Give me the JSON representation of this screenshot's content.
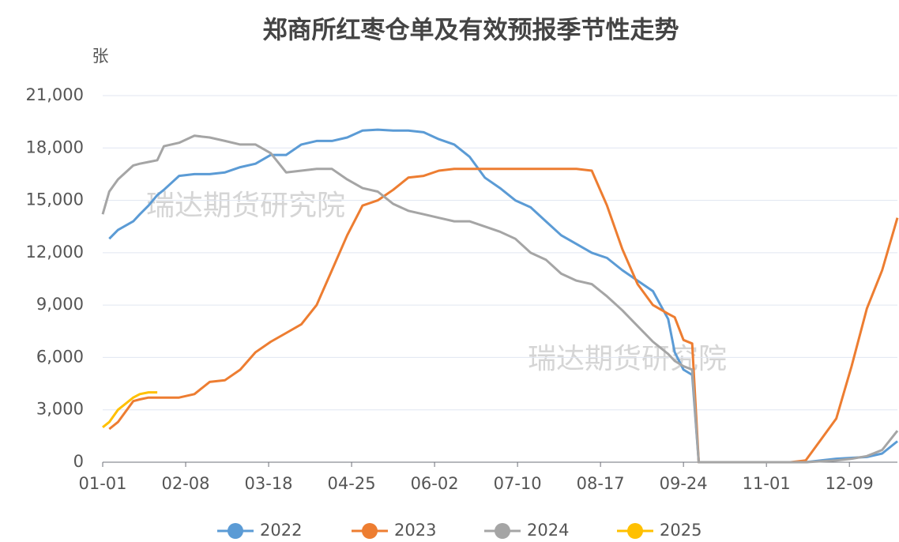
{
  "chart_data": {
    "type": "line",
    "title": "郑商所红枣仓单及有效预报季节性走势",
    "y_unit": "张",
    "watermarks": [
      "瑞达期货研究院",
      "瑞达期货研究院"
    ],
    "x": [
      "01-01",
      "01-04",
      "01-08",
      "01-15",
      "01-18",
      "01-22",
      "01-26",
      "01-29",
      "02-05",
      "02-12",
      "02-19",
      "02-26",
      "03-05",
      "03-12",
      "03-19",
      "03-26",
      "04-02",
      "04-09",
      "04-16",
      "04-23",
      "04-30",
      "05-07",
      "05-14",
      "05-21",
      "05-28",
      "06-04",
      "06-11",
      "06-18",
      "06-25",
      "07-02",
      "07-09",
      "07-16",
      "07-23",
      "07-30",
      "08-06",
      "08-13",
      "08-20",
      "08-27",
      "09-03",
      "09-10",
      "09-17",
      "09-20",
      "09-24",
      "09-28",
      "10-01",
      "10-08",
      "10-15",
      "10-22",
      "10-29",
      "11-05",
      "11-12",
      "11-19",
      "11-26",
      "12-03",
      "12-10",
      "12-17",
      "12-24",
      "12-31"
    ],
    "xlim": [
      "01-01",
      "12-31"
    ],
    "xticks": [
      "01-01",
      "02-08",
      "03-18",
      "04-25",
      "06-02",
      "07-10",
      "08-17",
      "09-24",
      "11-01",
      "12-09"
    ],
    "ylim": [
      0,
      21000
    ],
    "yticks": [
      {
        "value": 0,
        "label": "0"
      },
      {
        "value": 3000,
        "label": "3,000"
      },
      {
        "value": 6000,
        "label": "6,000"
      },
      {
        "value": 9000,
        "label": "9,000"
      },
      {
        "value": 12000,
        "label": "12,000"
      },
      {
        "value": 15000,
        "label": "15,000"
      },
      {
        "value": 18000,
        "label": "18,000"
      },
      {
        "value": 21000,
        "label": "21,000"
      }
    ],
    "grid": true,
    "legend": "bottom",
    "series": [
      {
        "name": "2022",
        "color": "#5b9bd5",
        "values": [
          null,
          12800,
          13300,
          13800,
          14200,
          14700,
          15300,
          15600,
          16400,
          16500,
          16500,
          16600,
          16900,
          17100,
          17600,
          17600,
          18200,
          18400,
          18400,
          18600,
          19000,
          19050,
          19000,
          19000,
          18900,
          18500,
          18200,
          17500,
          16300,
          15700,
          15000,
          14600,
          13800,
          13000,
          12500,
          12000,
          11700,
          11000,
          10400,
          9800,
          8200,
          6300,
          5300,
          5000,
          0,
          0,
          0,
          0,
          0,
          0,
          0,
          0,
          100,
          200,
          250,
          300,
          500,
          1200
        ]
      },
      {
        "name": "2023",
        "color": "#ed7d31",
        "values": [
          null,
          1900,
          2300,
          3500,
          3600,
          3700,
          3700,
          3700,
          3700,
          3900,
          4600,
          4700,
          5300,
          6300,
          6900,
          7400,
          7900,
          9000,
          11000,
          13000,
          14700,
          15000,
          15600,
          16300,
          16400,
          16700,
          16800,
          16800,
          16800,
          16800,
          16800,
          16800,
          16800,
          16800,
          16800,
          16700,
          14700,
          12200,
          10200,
          9000,
          8500,
          8300,
          7000,
          6800,
          0,
          0,
          0,
          0,
          0,
          0,
          0,
          100,
          1300,
          2500,
          5500,
          8800,
          11000,
          14000
        ]
      },
      {
        "name": "2024",
        "color": "#a5a5a5",
        "values": [
          14200,
          15500,
          16200,
          17000,
          17100,
          17200,
          17300,
          18100,
          18300,
          18700,
          18600,
          18400,
          18200,
          18200,
          17700,
          16600,
          16700,
          16800,
          16800,
          16200,
          15700,
          15500,
          14800,
          14400,
          14200,
          14000,
          13800,
          13800,
          13500,
          13200,
          12800,
          12000,
          11600,
          10800,
          10400,
          10200,
          9500,
          8700,
          7800,
          6900,
          6200,
          5800,
          5500,
          5300,
          0,
          0,
          0,
          0,
          0,
          0,
          0,
          0,
          50,
          100,
          200,
          350,
          700,
          1800
        ]
      },
      {
        "name": "2025",
        "color": "#ffc000",
        "values": [
          2000,
          2300,
          3000,
          3700,
          3900,
          4000,
          4000,
          null,
          null,
          null,
          null,
          null,
          null,
          null,
          null,
          null,
          null,
          null,
          null,
          null,
          null,
          null,
          null,
          null,
          null,
          null,
          null,
          null,
          null,
          null,
          null,
          null,
          null,
          null,
          null,
          null,
          null,
          null,
          null,
          null,
          null,
          null,
          null,
          null,
          null,
          null,
          null,
          null,
          null,
          null,
          null,
          null,
          null,
          null,
          null,
          null,
          null,
          null
        ]
      }
    ]
  }
}
